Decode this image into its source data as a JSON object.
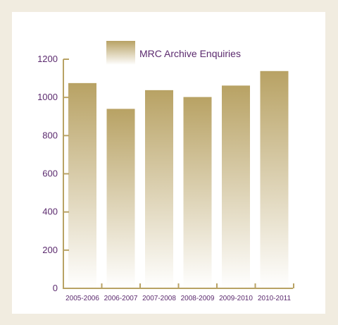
{
  "chart_data": {
    "type": "bar",
    "title": "",
    "xlabel": "",
    "ylabel": "",
    "categories": [
      "2005-2006",
      "2006-2007",
      "2007-2008",
      "2008-2009",
      "2009-2010",
      "2010-2011"
    ],
    "series": [
      {
        "name": "MRC Archive Enquiries",
        "values": [
          1075,
          940,
          1038,
          1002,
          1062,
          1138
        ]
      }
    ],
    "ylim": [
      0,
      1200
    ],
    "yticks": [
      "0",
      "200",
      "400",
      "600",
      "800",
      "1000",
      "1200"
    ],
    "grid": false,
    "legend_position": "top",
    "colors": {
      "bar_top": "#b8a264",
      "bar_bottom": "#ffffff",
      "axis": "#b8a264",
      "text": "#5b2a6e",
      "page_background": "#f1ece0",
      "panel_background": "#ffffff"
    }
  }
}
